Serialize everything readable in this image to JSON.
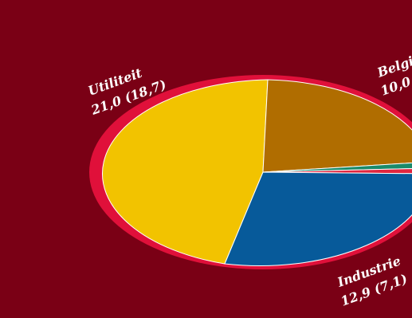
{
  "chart_data": {
    "type": "pie",
    "title": "",
    "slices": [
      {
        "label": "Utiliteit",
        "value_text": "21,0 (18,7)",
        "value": 21.0,
        "previous": 18.7,
        "color": "#f2c300"
      },
      {
        "label": "Belgi",
        "value_text": "10,0 (",
        "value": 10.0,
        "color": "#b06d00"
      },
      {
        "label": "",
        "value_text": "",
        "color": "#1a8a6a"
      },
      {
        "label": "",
        "value_text": "",
        "color": "#e0263f"
      },
      {
        "label": "Industrie",
        "value_text": "12,9 (7,1)",
        "value": 12.9,
        "previous": 7.1,
        "color": "#075a9a"
      }
    ],
    "rim_color": "#e0103a",
    "background": "#7a0015"
  }
}
